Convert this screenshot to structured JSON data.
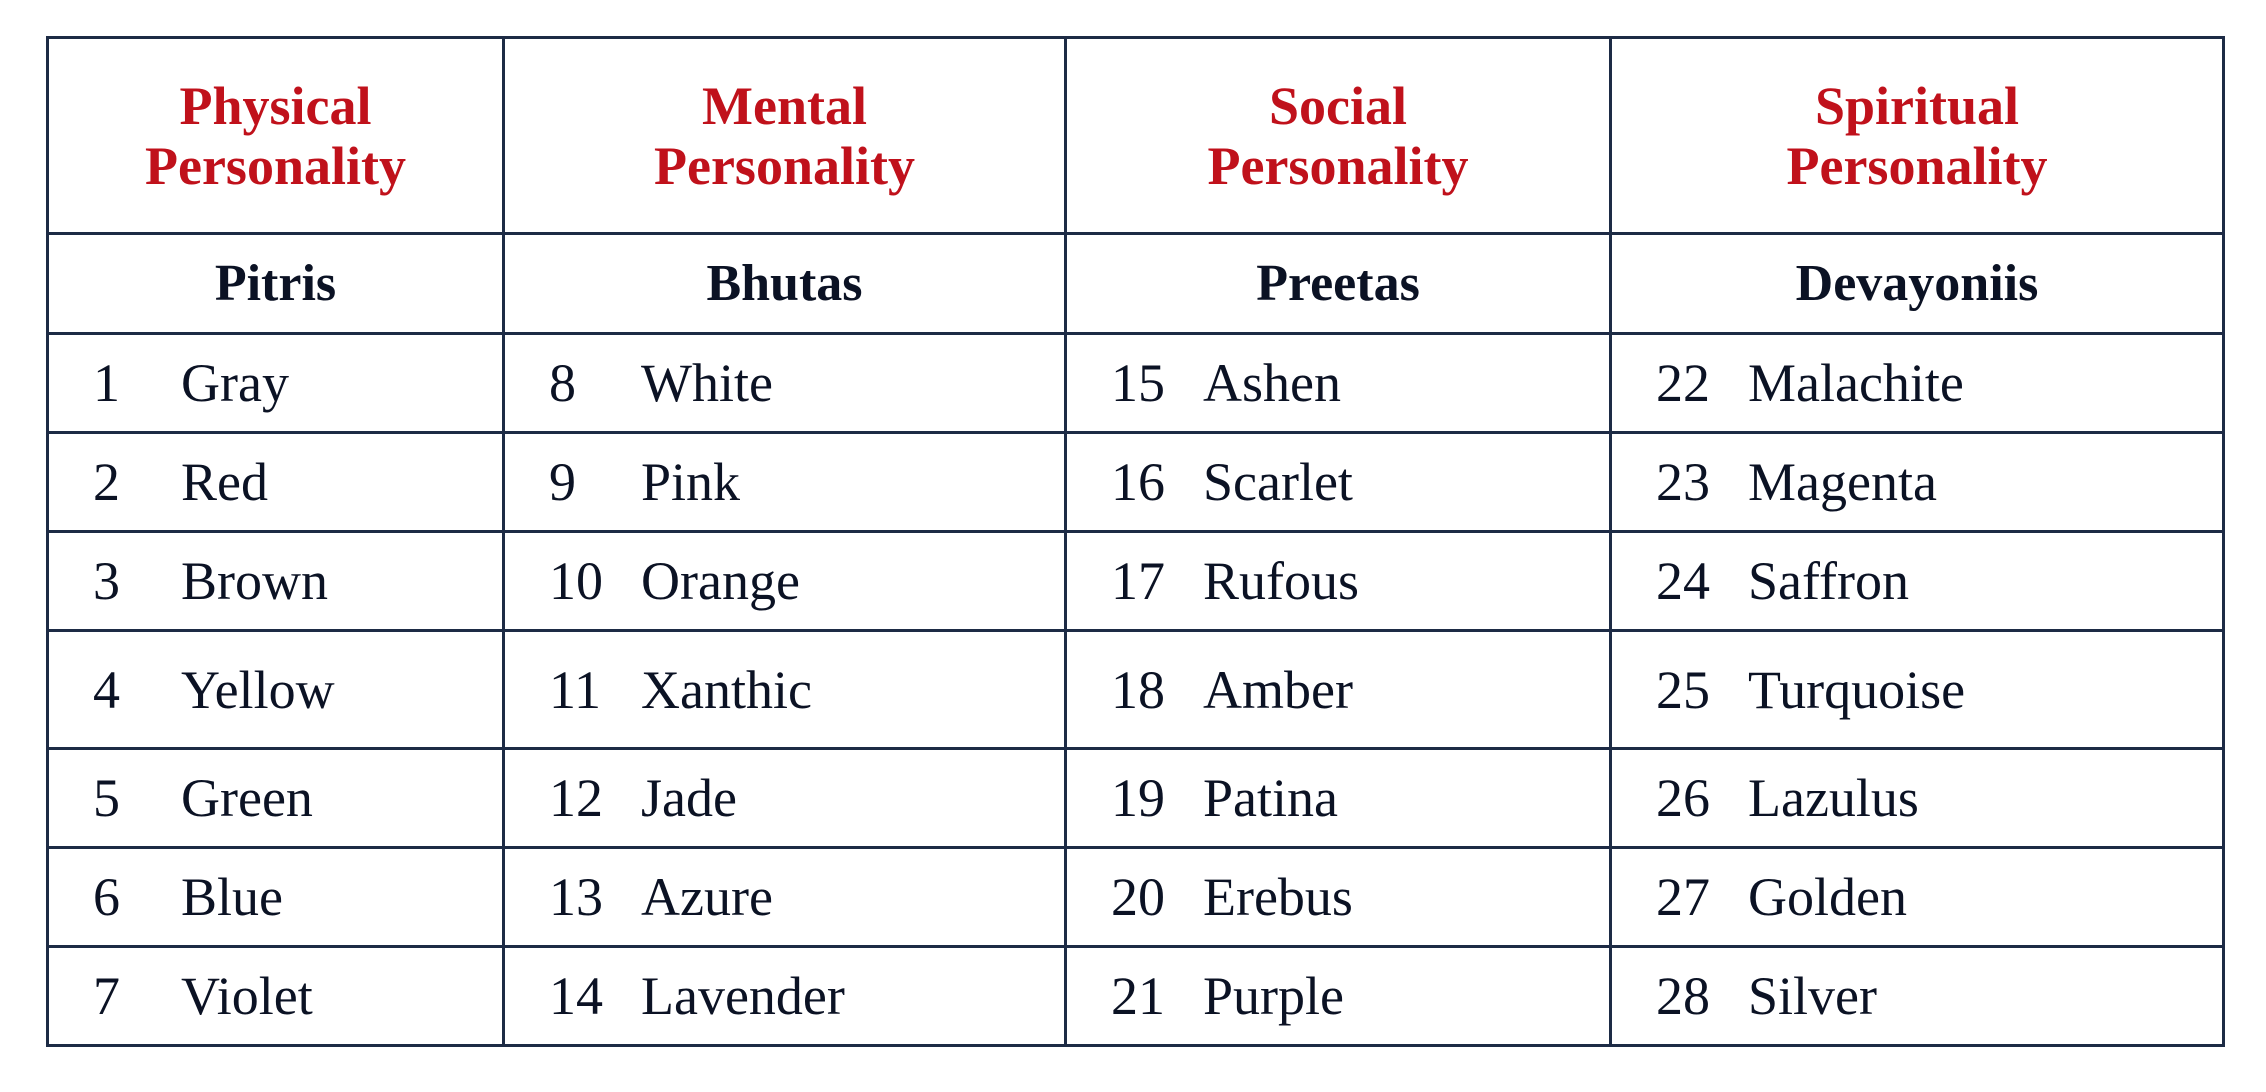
{
  "columns": [
    {
      "header_line1": "Physical",
      "header_line2": "Personality",
      "group": "Pitris",
      "items": [
        {
          "num": "1",
          "name": "Gray"
        },
        {
          "num": "2",
          "name": "Red"
        },
        {
          "num": "3",
          "name": "Brown"
        },
        {
          "num": "4",
          "name": "Yellow"
        },
        {
          "num": "5",
          "name": "Green"
        },
        {
          "num": "6",
          "name": "Blue"
        },
        {
          "num": "7",
          "name": "Violet"
        }
      ]
    },
    {
      "header_line1": "Mental",
      "header_line2": "Personality",
      "group": "Bhutas",
      "items": [
        {
          "num": "8",
          "name": "White"
        },
        {
          "num": "9",
          "name": "Pink"
        },
        {
          "num": "10",
          "name": "Orange"
        },
        {
          "num": "11",
          "name": "Xanthic"
        },
        {
          "num": "12",
          "name": "Jade"
        },
        {
          "num": "13",
          "name": "Azure"
        },
        {
          "num": "14",
          "name": "Lavender"
        }
      ]
    },
    {
      "header_line1": "Social",
      "header_line2": "Personality",
      "group": "Preetas",
      "items": [
        {
          "num": "15",
          "name": "Ashen"
        },
        {
          "num": "16",
          "name": "Scarlet"
        },
        {
          "num": "17",
          "name": "Rufous"
        },
        {
          "num": "18",
          "name": "Amber"
        },
        {
          "num": "19",
          "name": "Patina"
        },
        {
          "num": "20",
          "name": "Erebus"
        },
        {
          "num": "21",
          "name": "Purple"
        }
      ]
    },
    {
      "header_line1": "Spiritual",
      "header_line2": "Personality",
      "group": "Devayoniis",
      "items": [
        {
          "num": "22",
          "name": "Malachite"
        },
        {
          "num": "23",
          "name": "Magenta"
        },
        {
          "num": "24",
          "name": "Saffron"
        },
        {
          "num": "25",
          "name": "Turquoise"
        },
        {
          "num": "26",
          "name": "Lazulus"
        },
        {
          "num": "27",
          "name": "Golden"
        },
        {
          "num": "28",
          "name": "Silver"
        }
      ]
    }
  ],
  "colors": {
    "header_text": "#c0111b",
    "body_text": "#0b1224",
    "border": "#1d2b45"
  }
}
